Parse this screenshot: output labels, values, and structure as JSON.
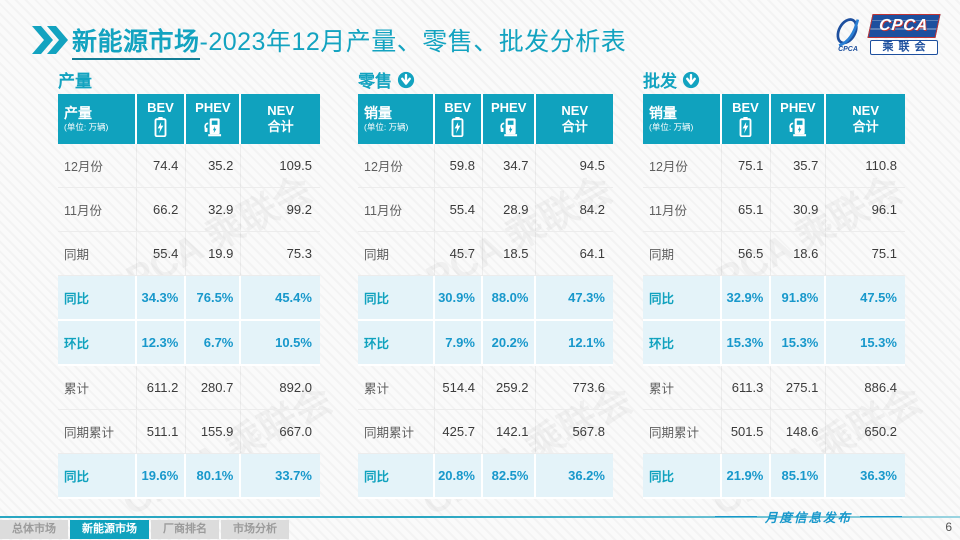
{
  "header": {
    "title_bold": "新能源市场",
    "title_rest": "-2023年12月产量、零售、批发分析表",
    "logo": {
      "banner": "CPCA",
      "subtitle": "乘联会",
      "swirl_caption": "CPCA"
    }
  },
  "colors": {
    "teal_accent": "#10a2be",
    "highlight_row_bg": "#e4f3f9",
    "highlight_value_blue": "#1898cb",
    "logo_blue": "#1d4f9e"
  },
  "watermark": "CPCA 乘联会",
  "tables": [
    {
      "section_title": "产量",
      "header": {
        "label": "产量",
        "unit": "(单位: 万辆)",
        "bev": "BEV",
        "phev": "PHEV",
        "nev1": "NEV",
        "nev2": "合计"
      },
      "rows": [
        {
          "label": "12月份",
          "values": [
            "74.4",
            "35.2",
            "109.5"
          ],
          "highlight": false
        },
        {
          "label": "11月份",
          "values": [
            "66.2",
            "32.9",
            "99.2"
          ],
          "highlight": false
        },
        {
          "label": "同期",
          "values": [
            "55.4",
            "19.9",
            "75.3"
          ],
          "highlight": false
        },
        {
          "label": "同比",
          "values": [
            "34.3%",
            "76.5%",
            "45.4%"
          ],
          "highlight": true
        },
        {
          "label": "环比",
          "values": [
            "12.3%",
            "6.7%",
            "10.5%"
          ],
          "highlight": true
        },
        {
          "label": "累计",
          "values": [
            "611.2",
            "280.7",
            "892.0"
          ],
          "highlight": false
        },
        {
          "label": "同期累计",
          "values": [
            "511.1",
            "155.9",
            "667.0"
          ],
          "highlight": false
        },
        {
          "label": "同比",
          "values": [
            "19.6%",
            "80.1%",
            "33.7%"
          ],
          "highlight": true
        }
      ]
    },
    {
      "section_title": "零售",
      "header": {
        "label": "销量",
        "unit": "(单位: 万辆)",
        "bev": "BEV",
        "phev": "PHEV",
        "nev1": "NEV",
        "nev2": "合计"
      },
      "rows": [
        {
          "label": "12月份",
          "values": [
            "59.8",
            "34.7",
            "94.5"
          ],
          "highlight": false
        },
        {
          "label": "11月份",
          "values": [
            "55.4",
            "28.9",
            "84.2"
          ],
          "highlight": false
        },
        {
          "label": "同期",
          "values": [
            "45.7",
            "18.5",
            "64.1"
          ],
          "highlight": false
        },
        {
          "label": "同比",
          "values": [
            "30.9%",
            "88.0%",
            "47.3%"
          ],
          "highlight": true
        },
        {
          "label": "环比",
          "values": [
            "7.9%",
            "20.2%",
            "12.1%"
          ],
          "highlight": true
        },
        {
          "label": "累计",
          "values": [
            "514.4",
            "259.2",
            "773.6"
          ],
          "highlight": false
        },
        {
          "label": "同期累计",
          "values": [
            "425.7",
            "142.1",
            "567.8"
          ],
          "highlight": false
        },
        {
          "label": "同比",
          "values": [
            "20.8%",
            "82.5%",
            "36.2%"
          ],
          "highlight": true
        }
      ]
    },
    {
      "section_title": "批发",
      "header": {
        "label": "销量",
        "unit": "(单位: 万辆)",
        "bev": "BEV",
        "phev": "PHEV",
        "nev1": "NEV",
        "nev2": "合计"
      },
      "rows": [
        {
          "label": "12月份",
          "values": [
            "75.1",
            "35.7",
            "110.8"
          ],
          "highlight": false
        },
        {
          "label": "11月份",
          "values": [
            "65.1",
            "30.9",
            "96.1"
          ],
          "highlight": false
        },
        {
          "label": "同期",
          "values": [
            "56.5",
            "18.6",
            "75.1"
          ],
          "highlight": false
        },
        {
          "label": "同比",
          "values": [
            "32.9%",
            "91.8%",
            "47.5%"
          ],
          "highlight": true
        },
        {
          "label": "环比",
          "values": [
            "15.3%",
            "15.3%",
            "15.3%"
          ],
          "highlight": true
        },
        {
          "label": "累计",
          "values": [
            "611.3",
            "275.1",
            "886.4"
          ],
          "highlight": false
        },
        {
          "label": "同期累计",
          "values": [
            "501.5",
            "148.6",
            "650.2"
          ],
          "highlight": false
        },
        {
          "label": "同比",
          "values": [
            "21.9%",
            "85.1%",
            "36.3%"
          ],
          "highlight": true
        }
      ]
    }
  ],
  "footer": {
    "tabs": [
      {
        "label": "总体市场",
        "active": false
      },
      {
        "label": "新能源市场",
        "active": true
      },
      {
        "label": "厂商排名",
        "active": false
      },
      {
        "label": "市场分析",
        "active": false
      }
    ],
    "note": "月度信息发布",
    "page_number": "6"
  }
}
